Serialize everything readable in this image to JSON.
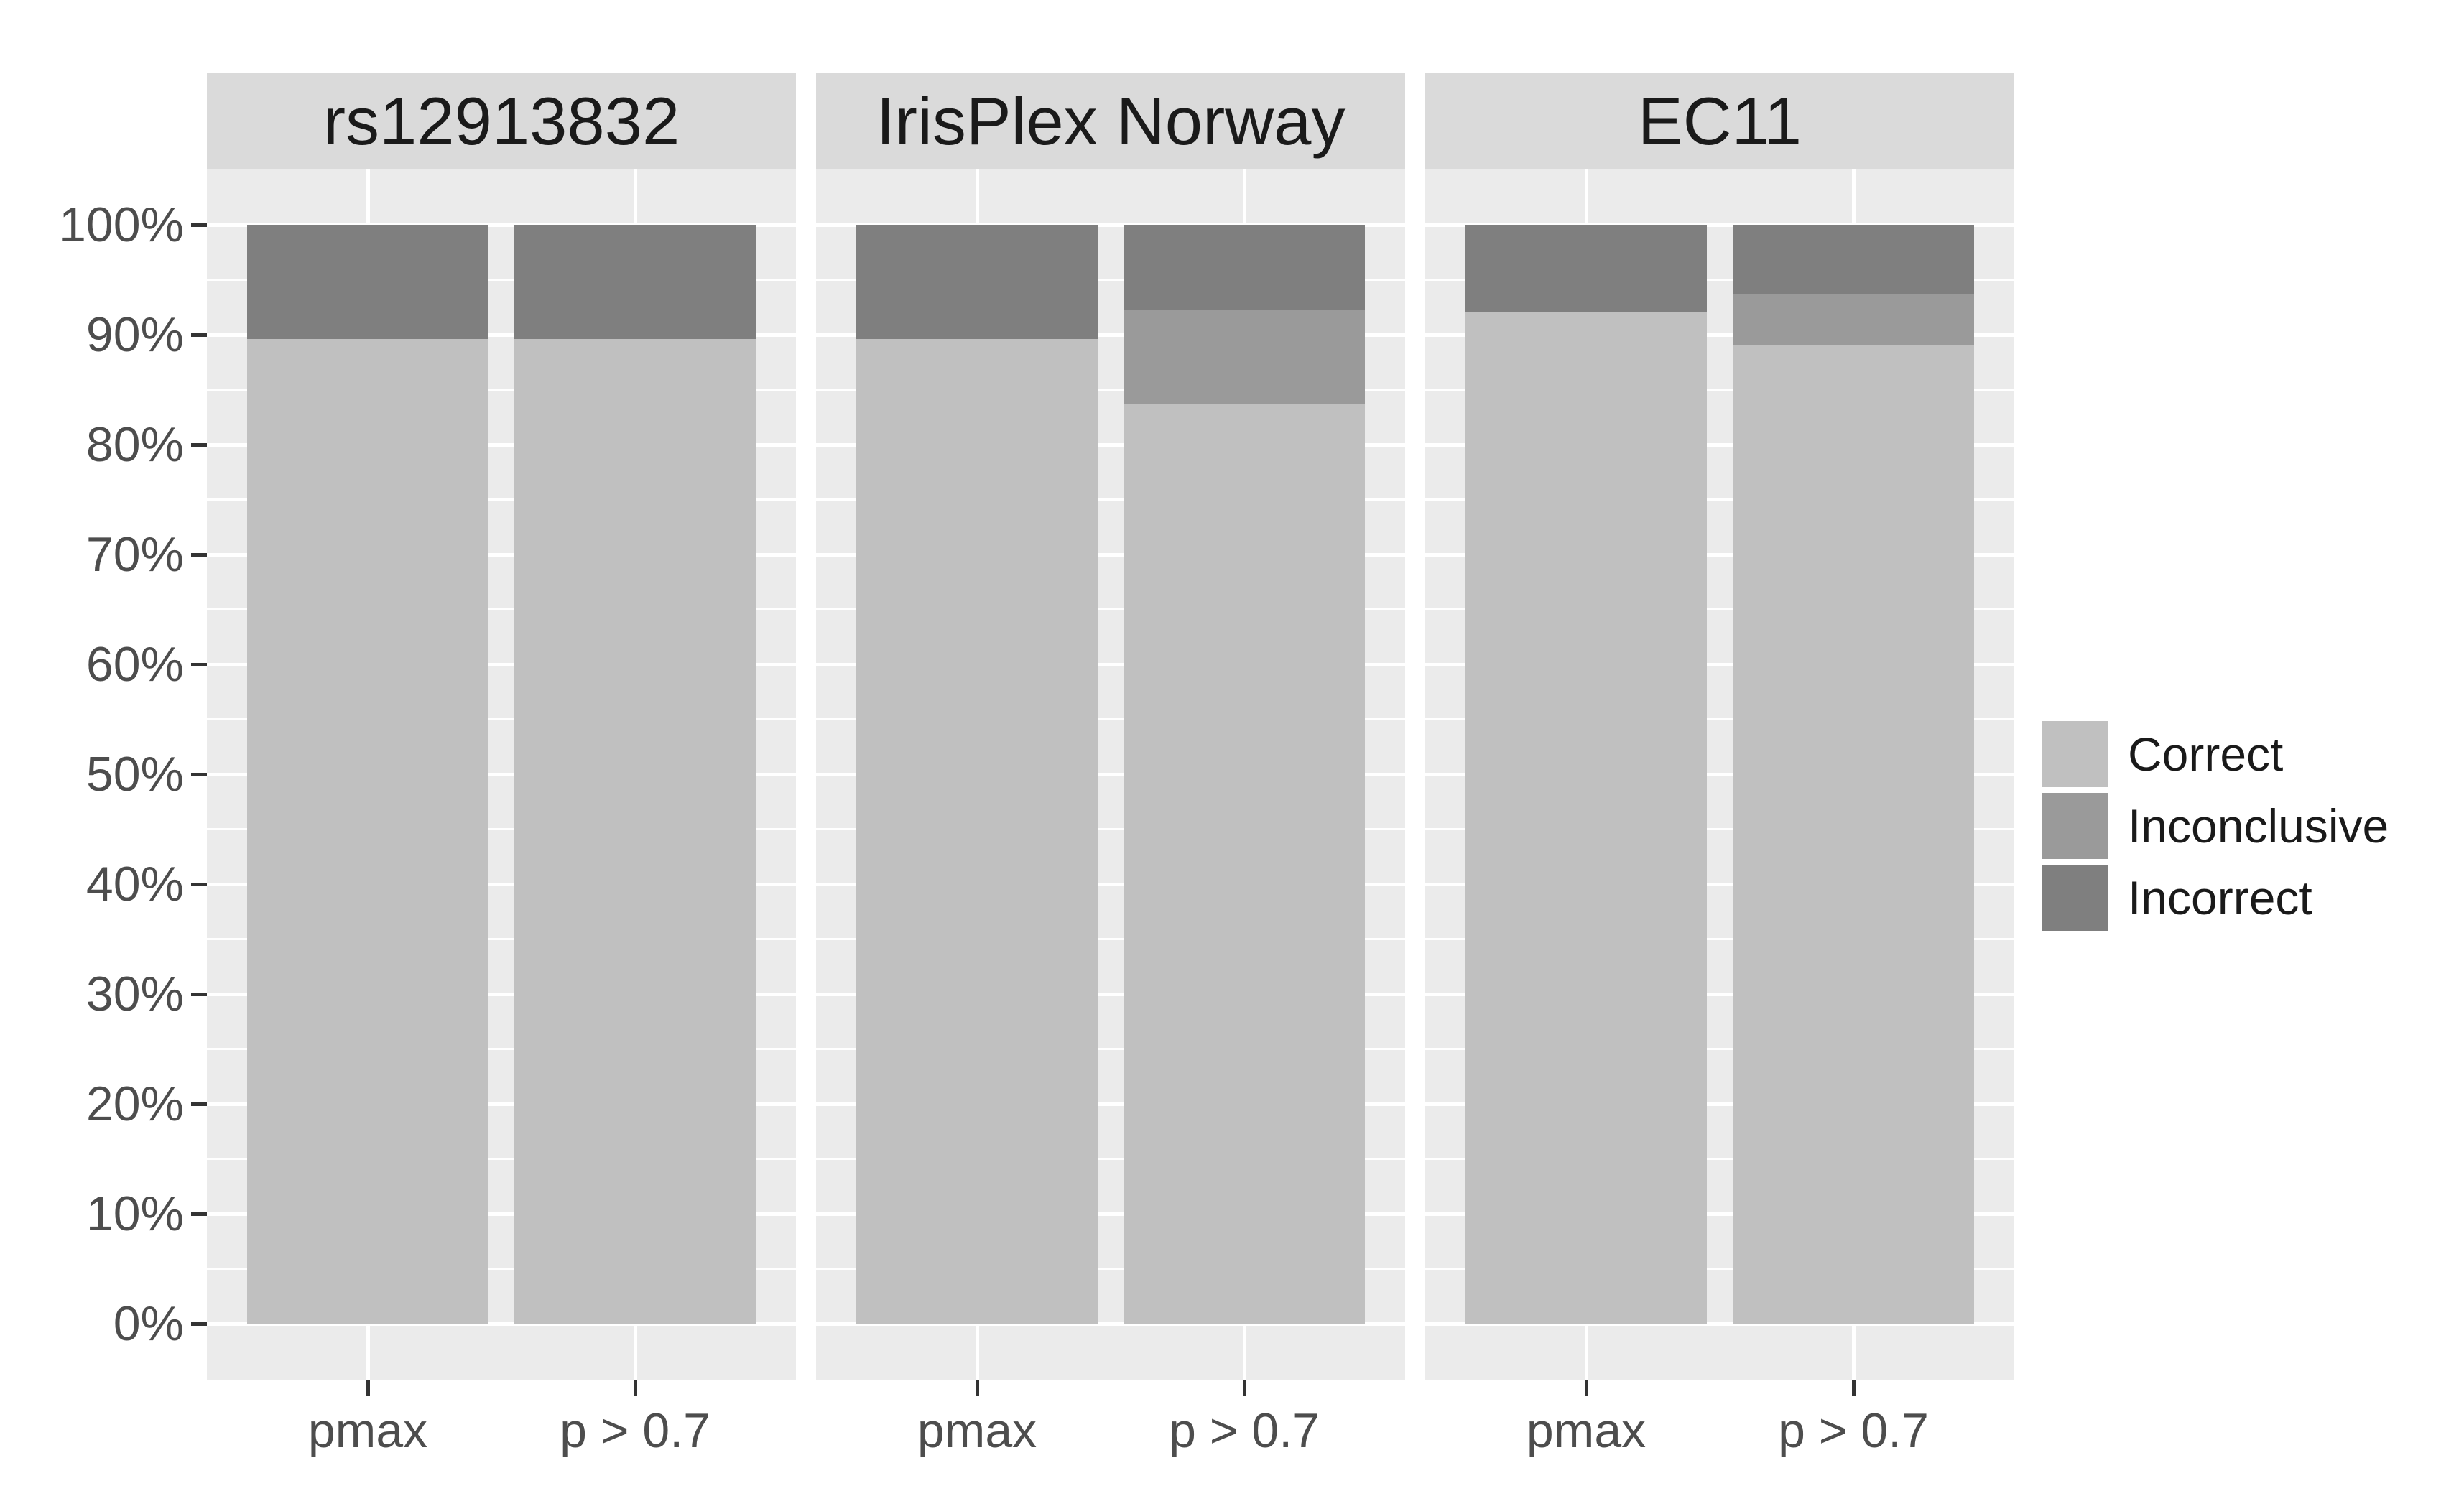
{
  "chart_data": {
    "type": "bar",
    "variant": "stacked-percent",
    "orientation": "vertical",
    "faceted": true,
    "x_categories": [
      "pmax",
      "p > 0.7"
    ],
    "series_order": [
      "Correct",
      "Inconclusive",
      "Incorrect"
    ],
    "facets": [
      {
        "label": "rs12913832",
        "bars": [
          {
            "category": "pmax",
            "segments": {
              "Correct": 89.6,
              "Inconclusive": 0,
              "Incorrect": 10.4
            }
          },
          {
            "category": "p > 0.7",
            "segments": {
              "Correct": 89.6,
              "Inconclusive": 0,
              "Incorrect": 10.4
            }
          }
        ]
      },
      {
        "label": "IrisPlex Norway",
        "bars": [
          {
            "category": "pmax",
            "segments": {
              "Correct": 89.6,
              "Inconclusive": 0,
              "Incorrect": 10.4
            }
          },
          {
            "category": "p > 0.7",
            "segments": {
              "Correct": 83.7,
              "Inconclusive": 8.5,
              "Incorrect": 7.8
            }
          }
        ]
      },
      {
        "label": "EC11",
        "bars": [
          {
            "category": "pmax",
            "segments": {
              "Correct": 92.1,
              "Inconclusive": 0,
              "Incorrect": 7.9
            }
          },
          {
            "category": "p > 0.7",
            "segments": {
              "Correct": 89.1,
              "Inconclusive": 4.6,
              "Incorrect": 6.3
            }
          }
        ]
      }
    ],
    "y_axis": {
      "min": 0,
      "max": 100,
      "major_step": 10,
      "minor_step": 5,
      "unit": "%",
      "ticks": [
        "0%",
        "10%",
        "20%",
        "30%",
        "40%",
        "50%",
        "60%",
        "70%",
        "80%",
        "90%",
        "100%"
      ]
    },
    "legend": {
      "position": "right",
      "entries": [
        {
          "label": "Correct",
          "color": "#C0C0C0"
        },
        {
          "label": "Inconclusive",
          "color": "#9A9A9A"
        },
        {
          "label": "Incorrect",
          "color": "#7F7F7F"
        }
      ]
    },
    "style": {
      "background": "#FFFFFF",
      "panel_bg": "#EBEBEB",
      "strip_bg": "#DADADA",
      "gridline": "#FFFFFF",
      "tick_mark": "#333333",
      "axis_text": "#4D4D4D",
      "strip_text": "#1A1A1A",
      "legend_text": "#1A1A1A"
    }
  }
}
